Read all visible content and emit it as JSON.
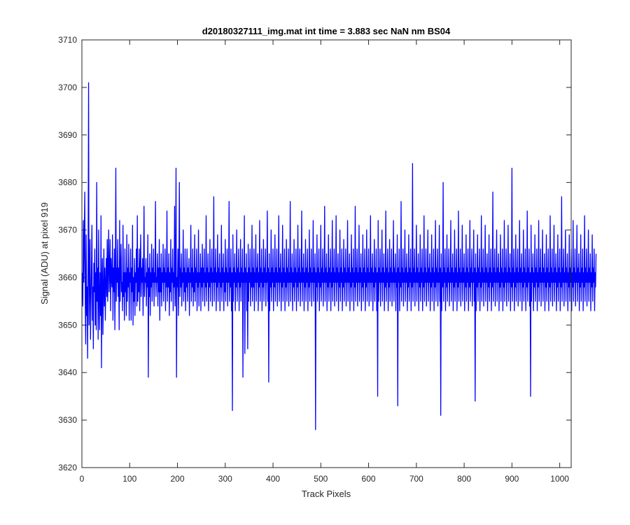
{
  "chart_data": {
    "type": "line",
    "title": "d20180327111_img.mat int time = 3.883 sec  NaN nm BS04",
    "xlabel": "Track Pixels",
    "ylabel": "Signal (ADU) at pixel 919",
    "xlim": [
      0,
      1024
    ],
    "ylim": [
      3620,
      3710
    ],
    "xticks": [
      0,
      100,
      200,
      300,
      400,
      500,
      600,
      700,
      800,
      900,
      1000
    ],
    "yticks": [
      3620,
      3630,
      3640,
      3650,
      3660,
      3670,
      3680,
      3690,
      3700,
      3710
    ],
    "grid": false,
    "legend": "none",
    "series_color": "#0000ff",
    "series": [
      {
        "x_start": 1,
        "x_step": 1,
        "values": [
          3661,
          3654,
          3672,
          3659,
          3668,
          3678,
          3655,
          3646,
          3669,
          3652,
          3658,
          3643,
          3664,
          3701,
          3650,
          3660,
          3668,
          3647,
          3655,
          3662,
          3671,
          3651,
          3658,
          3645,
          3663,
          3657,
          3666,
          3650,
          3661,
          3649,
          3680,
          3655,
          3662,
          3647,
          3670,
          3656,
          3649,
          3661,
          3652,
          3673,
          3641,
          3659,
          3664,
          3648,
          3657,
          3666,
          3654,
          3662,
          3651,
          3659,
          3664,
          3656,
          3668,
          3655,
          3662,
          3670,
          3657,
          3661,
          3668,
          3653,
          3664,
          3660,
          3658,
          3669,
          3651,
          3662,
          3657,
          3666,
          3649,
          3661,
          3683,
          3655,
          3662,
          3659,
          3668,
          3656,
          3662,
          3649,
          3672,
          3655,
          3661,
          3667,
          3657,
          3659,
          3653,
          3671,
          3656,
          3661,
          3651,
          3666,
          3657,
          3661,
          3652,
          3669,
          3655,
          3662,
          3658,
          3667,
          3651,
          3661,
          3659,
          3666,
          3651,
          3662,
          3657,
          3671,
          3650,
          3660,
          3655,
          3664,
          3652,
          3661,
          3659,
          3666,
          3654,
          3673,
          3655,
          3662,
          3657,
          3666,
          3653,
          3661,
          3669,
          3656,
          3662,
          3659,
          3664,
          3652,
          3661,
          3675,
          3656,
          3660,
          3659,
          3664,
          3654,
          3661,
          3658,
          3669,
          3639,
          3662,
          3656,
          3665,
          3652,
          3661,
          3658,
          3667,
          3655,
          3662,
          3659,
          3666,
          3654,
          3661,
          3659,
          3676,
          3656,
          3660,
          3659,
          3665,
          3654,
          3662,
          3657,
          3668,
          3651,
          3662,
          3657,
          3665,
          3654,
          3661,
          3659,
          3667,
          3655,
          3662,
          3659,
          3666,
          3653,
          3661,
          3658,
          3674,
          3655,
          3662,
          3658,
          3665,
          3652,
          3661,
          3657,
          3668,
          3655,
          3662,
          3659,
          3666,
          3653,
          3661,
          3658,
          3675,
          3654,
          3661,
          3683,
          3639,
          3660,
          3658,
          3666,
          3652,
          3661,
          3680,
          3656,
          3662,
          3658,
          3665,
          3654,
          3661,
          3659,
          3670,
          3655,
          3662,
          3657,
          3666,
          3653,
          3661,
          3658,
          3666,
          3655,
          3662,
          3659,
          3664,
          3652,
          3661,
          3659,
          3671,
          3655,
          3662,
          3658,
          3666,
          3654,
          3661,
          3657,
          3669,
          3655,
          3662,
          3659,
          3666,
          3653,
          3661,
          3658,
          3670,
          3654,
          3661,
          3659,
          3665,
          3653,
          3662,
          3658,
          3667,
          3655,
          3662,
          3659,
          3666,
          3654,
          3661,
          3658,
          3673,
          3655,
          3662,
          3659,
          3665,
          3653,
          3661,
          3658,
          3668,
          3655,
          3662,
          3659,
          3666,
          3654,
          3661,
          3659,
          3677,
          3655,
          3662,
          3659,
          3666,
          3653,
          3661,
          3658,
          3669,
          3655,
          3662,
          3659,
          3665,
          3653,
          3661,
          3658,
          3671,
          3655,
          3662,
          3659,
          3665,
          3653,
          3661,
          3657,
          3668,
          3655,
          3662,
          3659,
          3666,
          3654,
          3661,
          3659,
          3676,
          3655,
          3662,
          3658,
          3666,
          3653,
          3661,
          3632,
          3669,
          3655,
          3662,
          3659,
          3665,
          3653,
          3661,
          3658,
          3670,
          3655,
          3662,
          3659,
          3666,
          3653,
          3661,
          3658,
          3668,
          3655,
          3662,
          3659,
          3666,
          3639,
          3661,
          3659,
          3673,
          3644,
          3662,
          3659,
          3665,
          3653,
          3661,
          3645,
          3667,
          3655,
          3662,
          3659,
          3666,
          3654,
          3661,
          3658,
          3671,
          3655,
          3662,
          3658,
          3666,
          3653,
          3661,
          3659,
          3669,
          3655,
          3662,
          3659,
          3665,
          3653,
          3661,
          3658,
          3672,
          3655,
          3662,
          3659,
          3666,
          3653,
          3661,
          3658,
          3668,
          3655,
          3662,
          3659,
          3666,
          3654,
          3661,
          3659,
          3674,
          3655,
          3662,
          3638,
          3665,
          3653,
          3661,
          3658,
          3670,
          3655,
          3662,
          3659,
          3666,
          3653,
          3661,
          3658,
          3669,
          3655,
          3662,
          3659,
          3666,
          3654,
          3661,
          3659,
          3673,
          3655,
          3662,
          3659,
          3665,
          3653,
          3661,
          3658,
          3671,
          3655,
          3662,
          3659,
          3666,
          3653,
          3661,
          3658,
          3668,
          3655,
          3662,
          3659,
          3666,
          3654,
          3661,
          3659,
          3676,
          3655,
          3662,
          3659,
          3665,
          3653,
          3661,
          3658,
          3668,
          3655,
          3662,
          3659,
          3666,
          3653,
          3661,
          3658,
          3671,
          3655,
          3662,
          3659,
          3666,
          3654,
          3661,
          3659,
          3674,
          3655,
          3662,
          3659,
          3665,
          3653,
          3661,
          3658,
          3668,
          3655,
          3662,
          3659,
          3666,
          3653,
          3661,
          3658,
          3670,
          3655,
          3662,
          3659,
          3666,
          3654,
          3661,
          3659,
          3672,
          3655,
          3662,
          3659,
          3665,
          3628,
          3661,
          3658,
          3669,
          3655,
          3662,
          3659,
          3666,
          3653,
          3661,
          3658,
          3671,
          3655,
          3662,
          3659,
          3666,
          3654,
          3661,
          3659,
          3675,
          3655,
          3662,
          3659,
          3665,
          3653,
          3661,
          3658,
          3669,
          3655,
          3662,
          3659,
          3666,
          3653,
          3661,
          3658,
          3672,
          3655,
          3662,
          3659,
          3666,
          3654,
          3661,
          3659,
          3673,
          3655,
          3662,
          3659,
          3665,
          3653,
          3661,
          3658,
          3670,
          3655,
          3662,
          3659,
          3666,
          3653,
          3661,
          3658,
          3668,
          3655,
          3662,
          3659,
          3666,
          3654,
          3661,
          3659,
          3672,
          3655,
          3662,
          3659,
          3665,
          3653,
          3661,
          3658,
          3669,
          3655,
          3662,
          3659,
          3666,
          3653,
          3661,
          3658,
          3675,
          3655,
          3662,
          3659,
          3666,
          3654,
          3661,
          3659,
          3671,
          3655,
          3662,
          3659,
          3665,
          3653,
          3661,
          3658,
          3669,
          3655,
          3662,
          3659,
          3666,
          3653,
          3661,
          3658,
          3670,
          3655,
          3662,
          3659,
          3666,
          3654,
          3661,
          3659,
          3673,
          3655,
          3662,
          3659,
          3665,
          3653,
          3661,
          3658,
          3668,
          3655,
          3662,
          3659,
          3666,
          3653,
          3661,
          3635,
          3672,
          3655,
          3662,
          3659,
          3666,
          3654,
          3661,
          3659,
          3670,
          3655,
          3662,
          3659,
          3665,
          3653,
          3661,
          3658,
          3674,
          3655,
          3662,
          3659,
          3666,
          3653,
          3661,
          3658,
          3668,
          3655,
          3662,
          3659,
          3666,
          3654,
          3661,
          3659,
          3672,
          3655,
          3662,
          3659,
          3665,
          3653,
          3661,
          3658,
          3669,
          3633,
          3662,
          3659,
          3666,
          3653,
          3661,
          3658,
          3676,
          3655,
          3662,
          3659,
          3666,
          3654,
          3661,
          3659,
          3670,
          3655,
          3662,
          3659,
          3665,
          3653,
          3661,
          3658,
          3669,
          3655,
          3662,
          3659,
          3666,
          3653,
          3661,
          3658,
          3684,
          3655,
          3662,
          3659,
          3666,
          3654,
          3661,
          3659,
          3671,
          3655,
          3662,
          3659,
          3665,
          3653,
          3661,
          3658,
          3669,
          3655,
          3662,
          3659,
          3666,
          3653,
          3661,
          3658,
          3673,
          3655,
          3662,
          3659,
          3666,
          3654,
          3661,
          3659,
          3670,
          3655,
          3662,
          3659,
          3665,
          3653,
          3661,
          3658,
          3669,
          3655,
          3662,
          3659,
          3666,
          3653,
          3661,
          3658,
          3672,
          3655,
          3662,
          3659,
          3666,
          3654,
          3661,
          3659,
          3671,
          3655,
          3662,
          3631,
          3665,
          3653,
          3661,
          3658,
          3680,
          3655,
          3662,
          3659,
          3666,
          3653,
          3661,
          3658,
          3669,
          3655,
          3662,
          3659,
          3666,
          3654,
          3661,
          3659,
          3672,
          3655,
          3662,
          3659,
          3665,
          3653,
          3661,
          3658,
          3670,
          3655,
          3662,
          3659,
          3666,
          3653,
          3661,
          3658,
          3674,
          3655,
          3662,
          3659,
          3666,
          3654,
          3661,
          3659,
          3671,
          3655,
          3662,
          3659,
          3665,
          3653,
          3661,
          3658,
          3669,
          3655,
          3662,
          3659,
          3666,
          3653,
          3661,
          3658,
          3672,
          3655,
          3662,
          3659,
          3666,
          3654,
          3661,
          3659,
          3670,
          3655,
          3662,
          3634,
          3665,
          3653,
          3661,
          3658,
          3669,
          3655,
          3662,
          3659,
          3666,
          3653,
          3661,
          3658,
          3673,
          3655,
          3662,
          3659,
          3666,
          3654,
          3661,
          3659,
          3671,
          3655,
          3662,
          3659,
          3665,
          3653,
          3661,
          3658,
          3669,
          3655,
          3662,
          3659,
          3666,
          3653,
          3661,
          3658,
          3678,
          3655,
          3662,
          3659,
          3666,
          3654,
          3661,
          3659,
          3670,
          3655,
          3662,
          3659,
          3665,
          3653,
          3661,
          3658,
          3669,
          3655,
          3662,
          3659,
          3666,
          3653,
          3661,
          3658,
          3672,
          3655,
          3662,
          3659,
          3666,
          3654,
          3661,
          3659,
          3671,
          3655,
          3662,
          3659,
          3665,
          3653,
          3661,
          3658,
          3683,
          3655,
          3662,
          3659,
          3666,
          3653,
          3661,
          3658,
          3669,
          3655,
          3662,
          3659,
          3666,
          3654,
          3661,
          3659,
          3672,
          3655,
          3662,
          3659,
          3665,
          3653,
          3661,
          3658,
          3670,
          3655,
          3662,
          3659,
          3666,
          3653,
          3661,
          3658,
          3674,
          3655,
          3662,
          3659,
          3666,
          3654,
          3661,
          3635,
          3671,
          3655,
          3662,
          3659,
          3665,
          3653,
          3661,
          3658,
          3669,
          3655,
          3662,
          3659,
          3666,
          3653,
          3661,
          3658,
          3672,
          3655,
          3662,
          3659,
          3666,
          3654,
          3661,
          3659,
          3670,
          3655,
          3662,
          3659,
          3665,
          3653,
          3661,
          3658,
          3669,
          3655,
          3662,
          3659,
          3666,
          3653,
          3661,
          3658,
          3673,
          3655,
          3662,
          3659,
          3666,
          3654,
          3661,
          3659,
          3671,
          3655,
          3662,
          3659,
          3665,
          3653,
          3661,
          3658,
          3669,
          3655,
          3662,
          3659,
          3666,
          3653,
          3661,
          3658,
          3677,
          3655,
          3662,
          3659,
          3666,
          3654,
          3661,
          3659,
          3670,
          3655,
          3662,
          3659,
          3665,
          3653,
          3661,
          3658,
          3669,
          3655,
          3662,
          3659,
          3666,
          3653,
          3661,
          3658,
          3672,
          3655,
          3662,
          3659,
          3666,
          3654,
          3661,
          3659,
          3671,
          3655,
          3662,
          3659,
          3665,
          3653,
          3661,
          3658,
          3669,
          3655,
          3662,
          3659,
          3666,
          3653,
          3661,
          3658,
          3673,
          3655,
          3662,
          3659,
          3666,
          3654,
          3661,
          3659,
          3670,
          3655,
          3662,
          3659,
          3665,
          3653,
          3661,
          3658,
          3669,
          3655,
          3662,
          3659,
          3666,
          3653,
          3661,
          3658,
          3665
        ]
      }
    ]
  }
}
